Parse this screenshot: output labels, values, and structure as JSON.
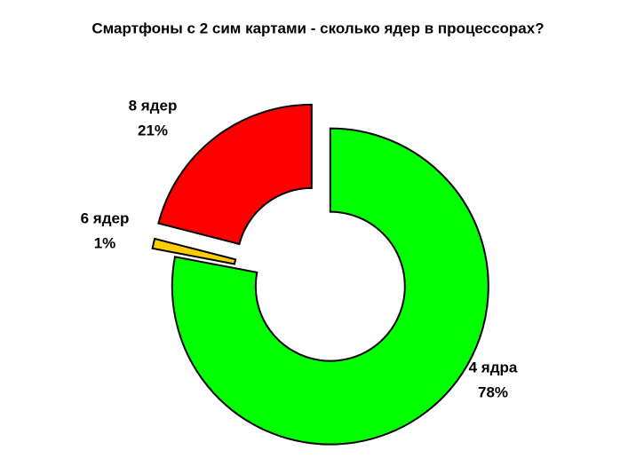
{
  "chart_data": {
    "type": "donut",
    "title": "Смартфоны с 2 сим картами - сколько ядер в процессорах?",
    "categories": [
      "4 ядра",
      "6 ядер",
      "8 ядер"
    ],
    "values": [
      78,
      1,
      21
    ],
    "value_labels": [
      "78%",
      "1%",
      "21%"
    ],
    "colors": [
      "#00ff00",
      "#ffcc00",
      "#ff0000"
    ]
  }
}
